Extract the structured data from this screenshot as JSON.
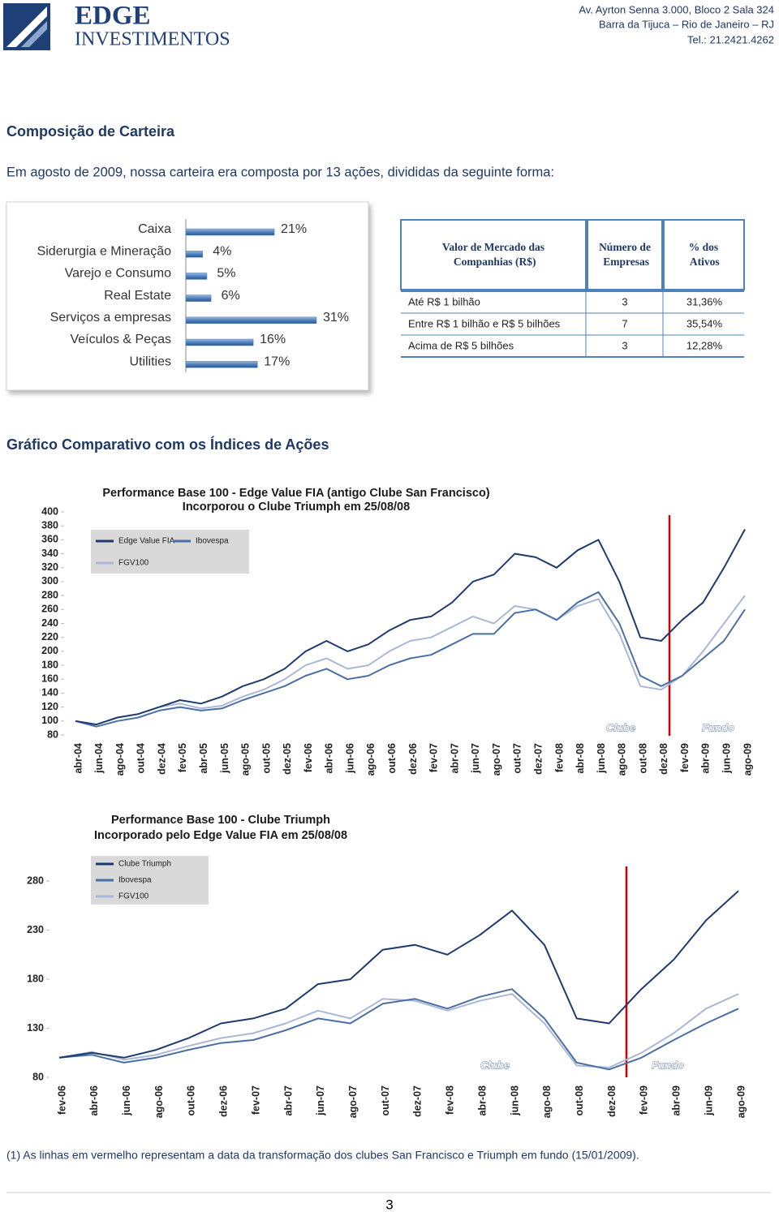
{
  "header": {
    "logo_line1": "EDGE",
    "logo_line2": "INVESTIMENTOS",
    "address": [
      "Av. Ayrton Senna 3.000, Bloco 2 Sala 324",
      "Barra da Tijuca – Rio de Janeiro – RJ",
      "Tel.: 21.2421.4262"
    ]
  },
  "heading": "Composição de Carteira",
  "intro": "Em agosto de 2009, nossa carteira era composta por 13 ações, divididas da seguinte forma:",
  "table": {
    "header": [
      "Valor de Mercado das Companhias (R$)",
      "Número de Empresas",
      "% dos Ativos"
    ],
    "rows": [
      [
        "Até R$ 1 bilhão",
        "3",
        "31,36%"
      ],
      [
        "Entre R$ 1 bilhão e R$ 5 bilhões",
        "7",
        "35,54%"
      ],
      [
        "Acima de R$ 5 bilhões",
        "3",
        "12,28%"
      ]
    ]
  },
  "section_title": "Gráfico Comparativo com os Índices de Ações",
  "footnote": "(1) As linhas em vermelho representam a data da transformação dos clubes San Francisco e Triumph em fundo (15/01/2009).",
  "page_number": "3",
  "chart_data": [
    {
      "type": "hbar",
      "categories": [
        "Caixa",
        "Siderurgia e Mineração",
        "Varejo e Consumo",
        "Real Estate",
        "Serviços a empresas",
        "Veículos & Peças",
        "Utilities"
      ],
      "values": [
        21,
        4,
        5,
        6,
        31,
        16,
        17
      ],
      "value_labels": [
        "21%",
        "4%",
        "5%",
        "6%",
        "31%",
        "16%",
        "17%"
      ],
      "color": "#4f81bd"
    },
    {
      "type": "line",
      "title": "Performance Base 100 - Edge Value FIA (antigo Clube San Francisco)",
      "subtitle": "Incorporou o Clube Triumph em 25/08/08",
      "categories": [
        "abr-04",
        "jun-04",
        "ago-04",
        "out-04",
        "dez-04",
        "fev-05",
        "abr-05",
        "jun-05",
        "ago-05",
        "out-05",
        "dez-05",
        "fev-06",
        "abr-06",
        "jun-06",
        "ago-06",
        "out-06",
        "dez-06",
        "fev-07",
        "abr-07",
        "jun-07",
        "ago-07",
        "out-07",
        "dez-07",
        "fev-08",
        "abr-08",
        "jun-08",
        "ago-08",
        "out-08",
        "dez-08",
        "fev-09",
        "abr-09",
        "jun-09",
        "ago-09"
      ],
      "series": [
        {
          "name": "Edge Value FIA",
          "color": "#1f3b6e",
          "values": [
            100,
            95,
            105,
            110,
            120,
            130,
            125,
            135,
            150,
            160,
            175,
            200,
            215,
            200,
            210,
            230,
            245,
            250,
            270,
            300,
            310,
            340,
            335,
            320,
            345,
            360,
            300,
            220,
            215,
            245,
            270,
            320,
            375
          ]
        },
        {
          "name": "Ibovespa",
          "color": "#4a6fa5",
          "values": [
            100,
            92,
            100,
            105,
            115,
            120,
            115,
            118,
            130,
            140,
            150,
            165,
            175,
            160,
            165,
            180,
            190,
            195,
            210,
            225,
            225,
            255,
            260,
            245,
            270,
            285,
            240,
            165,
            150,
            165,
            190,
            215,
            260
          ]
        },
        {
          "name": "FGV100",
          "color": "#aab8d6",
          "values": [
            100,
            95,
            105,
            110,
            120,
            125,
            118,
            122,
            135,
            145,
            160,
            180,
            190,
            175,
            180,
            200,
            215,
            220,
            235,
            250,
            240,
            265,
            260,
            245,
            265,
            275,
            225,
            150,
            145,
            165,
            200,
            240,
            280
          ]
        }
      ],
      "ylim": [
        80,
        400
      ],
      "yticks": [
        80,
        100,
        120,
        140,
        160,
        180,
        200,
        220,
        240,
        260,
        280,
        300,
        320,
        340,
        360,
        380,
        400
      ],
      "annotations": [
        "Clube",
        "Fundo"
      ]
    },
    {
      "type": "line",
      "title": "Performance Base 100 - Clube Triumph",
      "subtitle": "Incorporado pelo Edge Value FIA em 25/08/08",
      "categories": [
        "fev-06",
        "abr-06",
        "jun-06",
        "ago-06",
        "out-06",
        "dez-06",
        "fev-07",
        "abr-07",
        "jun-07",
        "ago-07",
        "out-07",
        "dez-07",
        "fev-08",
        "abr-08",
        "jun-08",
        "ago-08",
        "out-08",
        "dez-08",
        "fev-09",
        "abr-09",
        "jun-09",
        "ago-09"
      ],
      "series": [
        {
          "name": "Clube Triumph",
          "color": "#1f3b6e",
          "values": [
            100,
            105,
            100,
            108,
            120,
            135,
            140,
            150,
            175,
            180,
            210,
            215,
            205,
            225,
            250,
            215,
            140,
            135,
            170,
            200,
            240,
            270
          ]
        },
        {
          "name": "Ibovespa",
          "color": "#4a6fa5",
          "values": [
            100,
            103,
            95,
            100,
            108,
            115,
            118,
            128,
            140,
            135,
            155,
            160,
            150,
            162,
            170,
            140,
            95,
            88,
            100,
            118,
            135,
            150
          ]
        },
        {
          "name": "FGV100",
          "color": "#aab8d6",
          "values": [
            100,
            106,
            98,
            103,
            112,
            120,
            125,
            135,
            148,
            140,
            160,
            158,
            148,
            158,
            165,
            135,
            92,
            90,
            105,
            125,
            150,
            165
          ]
        }
      ],
      "ylim": [
        80,
        295
      ],
      "yticks": [
        80,
        130,
        180,
        230,
        280
      ],
      "annotations": [
        "Clube",
        "Fundo"
      ]
    }
  ]
}
